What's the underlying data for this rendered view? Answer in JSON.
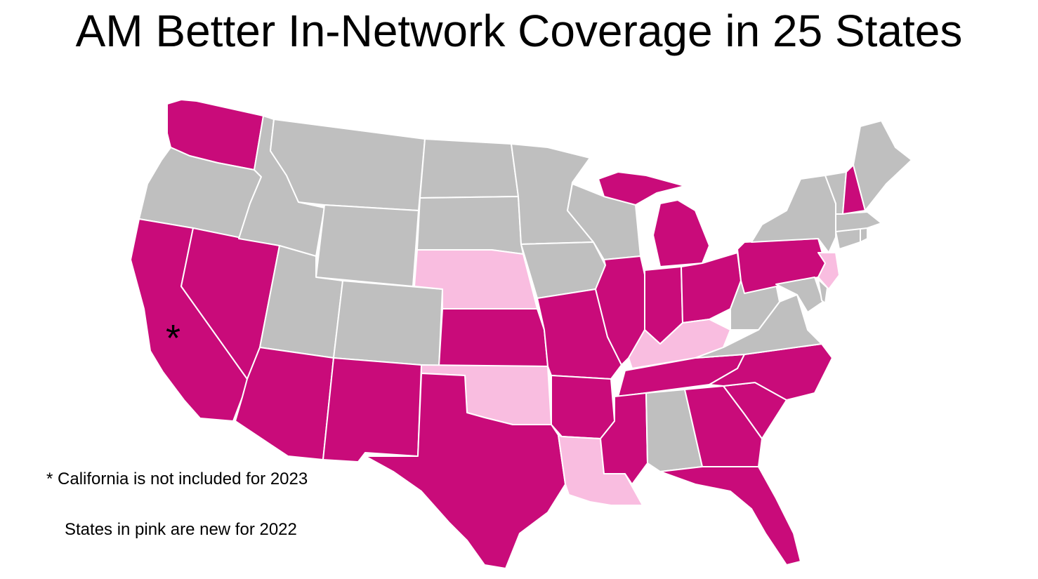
{
  "title": "AM Better In-Network Coverage in 25 States",
  "asterisk": "*",
  "footnotes": {
    "california": "* California is not included for 2023",
    "new_states": "States in pink are new for 2022"
  },
  "colors": {
    "covered": "#c90b7a",
    "new_2022": "#f9bde0",
    "not_covered": "#bfbfbf",
    "border": "#ffffff"
  },
  "states": [
    {
      "code": "WA",
      "status": "covered"
    },
    {
      "code": "OR",
      "status": "not_covered"
    },
    {
      "code": "CA",
      "status": "covered"
    },
    {
      "code": "NV",
      "status": "covered"
    },
    {
      "code": "ID",
      "status": "not_covered"
    },
    {
      "code": "MT",
      "status": "not_covered"
    },
    {
      "code": "WY",
      "status": "not_covered"
    },
    {
      "code": "UT",
      "status": "not_covered"
    },
    {
      "code": "AZ",
      "status": "covered"
    },
    {
      "code": "CO",
      "status": "not_covered"
    },
    {
      "code": "NM",
      "status": "covered"
    },
    {
      "code": "ND",
      "status": "not_covered"
    },
    {
      "code": "SD",
      "status": "not_covered"
    },
    {
      "code": "NE",
      "status": "new_2022"
    },
    {
      "code": "KS",
      "status": "covered"
    },
    {
      "code": "OK",
      "status": "new_2022"
    },
    {
      "code": "TX",
      "status": "covered"
    },
    {
      "code": "MN",
      "status": "not_covered"
    },
    {
      "code": "IA",
      "status": "not_covered"
    },
    {
      "code": "MO",
      "status": "covered"
    },
    {
      "code": "AR",
      "status": "covered"
    },
    {
      "code": "LA",
      "status": "new_2022"
    },
    {
      "code": "WI",
      "status": "not_covered"
    },
    {
      "code": "MI_UP",
      "status": "covered"
    },
    {
      "code": "MI",
      "status": "covered"
    },
    {
      "code": "IL",
      "status": "covered"
    },
    {
      "code": "IN",
      "status": "covered"
    },
    {
      "code": "OH",
      "status": "covered"
    },
    {
      "code": "KY",
      "status": "new_2022"
    },
    {
      "code": "TN",
      "status": "covered"
    },
    {
      "code": "MS",
      "status": "covered"
    },
    {
      "code": "AL",
      "status": "not_covered"
    },
    {
      "code": "GA",
      "status": "covered"
    },
    {
      "code": "FL",
      "status": "covered"
    },
    {
      "code": "SC",
      "status": "covered"
    },
    {
      "code": "NC",
      "status": "covered"
    },
    {
      "code": "VA",
      "status": "not_covered"
    },
    {
      "code": "WV",
      "status": "not_covered"
    },
    {
      "code": "PA",
      "status": "covered"
    },
    {
      "code": "NY",
      "status": "not_covered"
    },
    {
      "code": "NJ",
      "status": "new_2022"
    },
    {
      "code": "MD",
      "status": "not_covered"
    },
    {
      "code": "DE",
      "status": "not_covered"
    },
    {
      "code": "CT",
      "status": "not_covered"
    },
    {
      "code": "RI",
      "status": "not_covered"
    },
    {
      "code": "MA",
      "status": "not_covered"
    },
    {
      "code": "VT",
      "status": "not_covered"
    },
    {
      "code": "NH",
      "status": "covered"
    },
    {
      "code": "ME",
      "status": "not_covered"
    }
  ]
}
